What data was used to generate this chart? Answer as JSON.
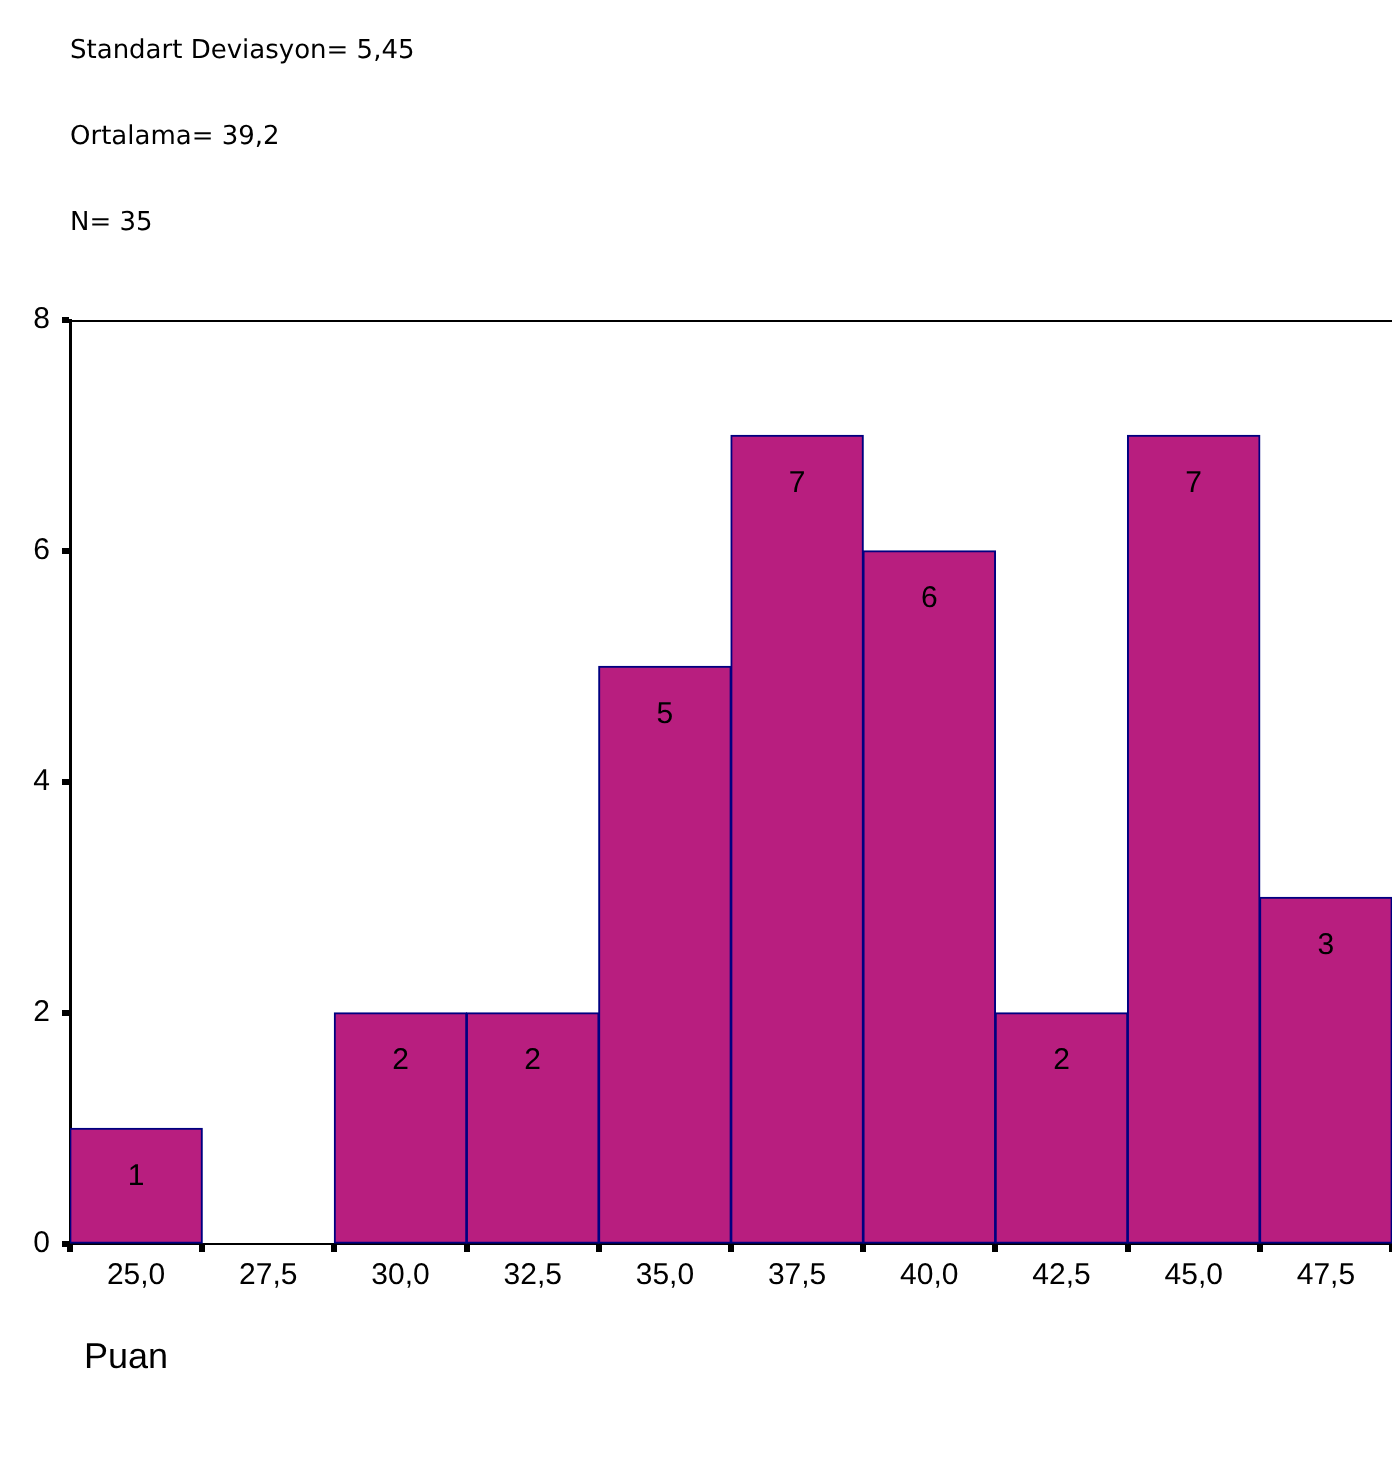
{
  "chart_data": {
    "type": "histogram",
    "annotations": [
      "Standart Deviasyon= 5,45",
      "Ortalama= 39,2",
      "N= 35"
    ],
    "xlabel": "Puan",
    "bins": [
      23.75,
      26.25,
      28.75,
      31.25,
      33.75,
      36.25,
      38.75,
      41.25,
      43.75,
      46.25,
      48.75
    ],
    "values": [
      1,
      0,
      2,
      2,
      5,
      7,
      6,
      2,
      7,
      3
    ],
    "value_labels": [
      "1",
      null,
      "2",
      "2",
      "5",
      "7",
      "6",
      "2",
      "7",
      "3"
    ],
    "color": "#b81e7f",
    "xlim": [
      23.75,
      48.75
    ],
    "xticks": [
      {
        "value": 25,
        "label": "25,0"
      },
      {
        "value": 27.5,
        "label": "27,5"
      },
      {
        "value": 30,
        "label": "30,0"
      },
      {
        "value": 32.5,
        "label": "32,5"
      },
      {
        "value": 35,
        "label": "35,0"
      },
      {
        "value": 37.5,
        "label": "37,5"
      },
      {
        "value": 40,
        "label": "40,0"
      },
      {
        "value": 42.5,
        "label": "42,5"
      },
      {
        "value": 45,
        "label": "45,0"
      },
      {
        "value": 47.5,
        "label": "47,5"
      }
    ],
    "ylim": [
      0,
      8
    ],
    "yticks": [
      0,
      2,
      4,
      6,
      8
    ]
  }
}
